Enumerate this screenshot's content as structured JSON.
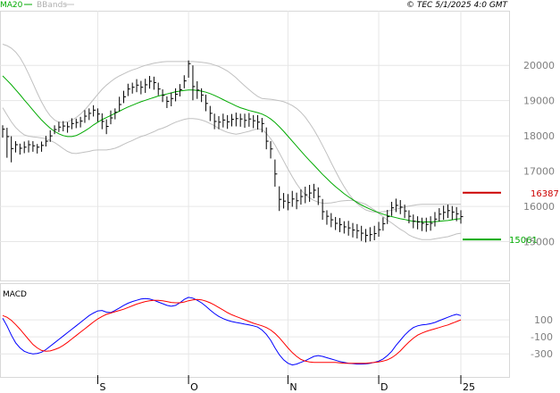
{
  "header": {
    "legend_ma": "MA20",
    "legend_bb": "BBands",
    "copyright": "© TEC 5/1/2025 4:0 GMT"
  },
  "macd_panel": {
    "title": "MACD"
  },
  "colors": {
    "background": "#ffffff",
    "plot_bg": "#ffffff",
    "grid": "#e6e6e6",
    "ma": "#00aa00",
    "bbands": "#c0c0c0",
    "price": "#000000",
    "resistance": "#cc0000",
    "support": "#00aa00",
    "macd": "#0000ff",
    "signal": "#ff0000"
  },
  "chart_data": [
    {
      "type": "ohlc",
      "panel": "price",
      "y_ticks": [
        15000,
        16000,
        17000,
        18000,
        19000,
        20000
      ],
      "y_tick_labels": [
        "15000",
        "16000",
        "17000",
        "18000",
        "19000",
        "20000"
      ],
      "ylim": [
        13950,
        21500
      ],
      "x_ticks": [
        {
          "index": 22,
          "label": "S"
        },
        {
          "index": 43,
          "label": "O"
        },
        {
          "index": 66,
          "label": "N"
        },
        {
          "index": 87,
          "label": "D"
        },
        {
          "index": 106,
          "label": "25"
        }
      ],
      "x_count": 107,
      "levels": [
        {
          "name": "resistance",
          "value": 16387,
          "label": "16387"
        },
        {
          "name": "support",
          "value": 15061,
          "label": "15061"
        }
      ],
      "close": [
        18190,
        17980,
        17640,
        17750,
        17650,
        17680,
        17750,
        17720,
        17680,
        17730,
        17850,
        18000,
        18180,
        18250,
        18280,
        18260,
        18350,
        18380,
        18420,
        18560,
        18640,
        18730,
        18620,
        18410,
        18270,
        18510,
        18670,
        18890,
        19110,
        19330,
        19380,
        19440,
        19380,
        19450,
        19550,
        19510,
        19330,
        19150,
        18980,
        19060,
        19180,
        19310,
        19560,
        20050,
        19400,
        19300,
        19160,
        18920,
        18640,
        18410,
        18390,
        18450,
        18400,
        18470,
        18490,
        18480,
        18440,
        18480,
        18430,
        18390,
        18350,
        17850,
        17630,
        16920,
        16200,
        16150,
        16110,
        16210,
        16160,
        16280,
        16330,
        16380,
        16460,
        16280,
        15850,
        15720,
        15620,
        15520,
        15480,
        15420,
        15390,
        15330,
        15310,
        15240,
        15180,
        15200,
        15230,
        15340,
        15510,
        15710,
        15960,
        16030,
        15980,
        15870,
        15720,
        15580,
        15560,
        15520,
        15490,
        15520,
        15640,
        15780,
        15830,
        15880,
        15840,
        15790,
        15710
      ],
      "high": [
        18300,
        18230,
        17990,
        17850,
        17780,
        17840,
        17870,
        17850,
        17770,
        17840,
        18000,
        18160,
        18300,
        18400,
        18420,
        18390,
        18500,
        18490,
        18540,
        18730,
        18780,
        18870,
        18780,
        18640,
        18470,
        18720,
        18780,
        19110,
        19280,
        19480,
        19510,
        19610,
        19560,
        19620,
        19700,
        19680,
        19510,
        19320,
        19120,
        19230,
        19350,
        19470,
        19720,
        20140,
        20000,
        19550,
        19350,
        19170,
        18850,
        18630,
        18560,
        18630,
        18590,
        18620,
        18660,
        18630,
        18630,
        18650,
        18590,
        18590,
        18510,
        18240,
        17850,
        17330,
        16570,
        16380,
        16350,
        16440,
        16390,
        16480,
        16560,
        16610,
        16640,
        16540,
        16210,
        15890,
        15810,
        15700,
        15670,
        15580,
        15590,
        15530,
        15500,
        15450,
        15360,
        15410,
        15450,
        15560,
        15690,
        15900,
        16130,
        16220,
        16180,
        16050,
        15890,
        15770,
        15720,
        15680,
        15680,
        15720,
        15840,
        15950,
        16020,
        16050,
        16010,
        15980,
        15890
      ],
      "low": [
        17950,
        17380,
        17250,
        17530,
        17470,
        17510,
        17530,
        17550,
        17500,
        17550,
        17700,
        17830,
        18050,
        18110,
        18130,
        18090,
        18190,
        18220,
        18240,
        18370,
        18450,
        18550,
        18400,
        18190,
        18050,
        18330,
        18470,
        18690,
        18930,
        19130,
        19200,
        19240,
        19180,
        19220,
        19340,
        19310,
        19150,
        18960,
        18790,
        18840,
        18980,
        19120,
        19350,
        19650,
        19010,
        19050,
        18960,
        18700,
        18420,
        18190,
        18190,
        18240,
        18200,
        18270,
        18270,
        18260,
        18230,
        18260,
        18220,
        18180,
        18100,
        17620,
        17360,
        16560,
        15870,
        15940,
        15890,
        15990,
        15920,
        16050,
        16090,
        16130,
        16230,
        16040,
        15620,
        15480,
        15410,
        15330,
        15270,
        15230,
        15170,
        15120,
        15090,
        15020,
        14980,
        15010,
        15040,
        15140,
        15310,
        15500,
        15730,
        15840,
        15780,
        15670,
        15520,
        15380,
        15350,
        15300,
        15280,
        15310,
        15430,
        15570,
        15620,
        15670,
        15620,
        15580,
        15510
      ],
      "ma20": [
        19700,
        19580,
        19450,
        19310,
        19170,
        19020,
        18880,
        18730,
        18590,
        18450,
        18330,
        18220,
        18130,
        18060,
        18010,
        17980,
        17980,
        18010,
        18070,
        18140,
        18220,
        18310,
        18390,
        18460,
        18520,
        18580,
        18640,
        18700,
        18760,
        18820,
        18870,
        18920,
        18970,
        19010,
        19050,
        19090,
        19130,
        19160,
        19190,
        19220,
        19250,
        19270,
        19290,
        19300,
        19300,
        19290,
        19270,
        19240,
        19200,
        19150,
        19090,
        19030,
        18970,
        18910,
        18850,
        18800,
        18760,
        18720,
        18690,
        18660,
        18620,
        18560,
        18480,
        18380,
        18260,
        18130,
        17990,
        17850,
        17710,
        17570,
        17430,
        17300,
        17170,
        17040,
        16910,
        16790,
        16670,
        16560,
        16460,
        16360,
        16270,
        16190,
        16110,
        16040,
        15980,
        15920,
        15870,
        15820,
        15780,
        15740,
        15710,
        15680,
        15650,
        15630,
        15600,
        15580,
        15570,
        15560,
        15560,
        15560,
        15570,
        15580,
        15590,
        15600,
        15620,
        15640,
        15650
      ],
      "bb_upper": [
        20600,
        20560,
        20490,
        20380,
        20220,
        20010,
        19760,
        19490,
        19220,
        18960,
        18740,
        18570,
        18450,
        18390,
        18380,
        18400,
        18450,
        18520,
        18620,
        18740,
        18880,
        19030,
        19180,
        19320,
        19440,
        19540,
        19630,
        19700,
        19760,
        19820,
        19870,
        19910,
        19960,
        20000,
        20030,
        20060,
        20080,
        20100,
        20110,
        20110,
        20110,
        20110,
        20110,
        20110,
        20110,
        20100,
        20090,
        20070,
        20050,
        20010,
        19970,
        19910,
        19840,
        19750,
        19650,
        19530,
        19420,
        19310,
        19210,
        19120,
        19060,
        19050,
        19040,
        19020,
        19000,
        18970,
        18920,
        18860,
        18780,
        18670,
        18530,
        18360,
        18170,
        17960,
        17730,
        17490,
        17240,
        17000,
        16770,
        16560,
        16370,
        16210,
        16080,
        15980,
        15900,
        15860,
        15840,
        15840,
        15850,
        15870,
        15890,
        15920,
        15950,
        15980,
        16010,
        16030,
        16050,
        16060,
        16060,
        16060,
        16060,
        16060,
        16060,
        16060,
        16060,
        16060,
        16060
      ],
      "bb_lower": [
        18800,
        18600,
        18400,
        18240,
        18120,
        18030,
        17990,
        17970,
        17960,
        17940,
        17920,
        17870,
        17810,
        17730,
        17640,
        17560,
        17510,
        17500,
        17520,
        17540,
        17560,
        17590,
        17600,
        17600,
        17600,
        17620,
        17650,
        17700,
        17760,
        17820,
        17870,
        17930,
        17980,
        18020,
        18070,
        18120,
        18180,
        18220,
        18270,
        18330,
        18390,
        18430,
        18470,
        18490,
        18490,
        18480,
        18450,
        18410,
        18350,
        18290,
        18210,
        18150,
        18100,
        18070,
        18050,
        18070,
        18100,
        18130,
        18170,
        18200,
        18180,
        18070,
        17920,
        17740,
        17520,
        17290,
        17060,
        16840,
        16640,
        16470,
        16330,
        16240,
        16170,
        16120,
        16090,
        16090,
        16100,
        16120,
        16150,
        16160,
        16170,
        16170,
        16140,
        16100,
        16060,
        15980,
        15900,
        15800,
        15710,
        15610,
        15530,
        15440,
        15350,
        15280,
        15190,
        15130,
        15090,
        15060,
        15060,
        15060,
        15080,
        15100,
        15120,
        15140,
        15180,
        15220,
        15240
      ]
    },
    {
      "type": "line",
      "panel": "macd",
      "title": "MACD",
      "y_ticks": [
        100,
        -100,
        -300
      ],
      "y_tick_labels": [
        "100",
        "-100",
        "-300"
      ],
      "ylim": [
        -550,
        500
      ],
      "series": [
        {
          "name": "MACD",
          "values": [
            120,
            30,
            -80,
            -170,
            -230,
            -270,
            -290,
            -300,
            -295,
            -280,
            -250,
            -210,
            -170,
            -130,
            -90,
            -50,
            -10,
            30,
            70,
            110,
            150,
            180,
            205,
            210,
            190,
            185,
            210,
            240,
            270,
            295,
            315,
            330,
            345,
            350,
            345,
            330,
            310,
            290,
            270,
            260,
            270,
            300,
            340,
            365,
            355,
            330,
            300,
            260,
            215,
            175,
            140,
            115,
            95,
            80,
            70,
            60,
            50,
            40,
            30,
            15,
            -20,
            -70,
            -140,
            -230,
            -310,
            -370,
            -410,
            -430,
            -420,
            -400,
            -380,
            -355,
            -330,
            -320,
            -330,
            -345,
            -360,
            -375,
            -390,
            -400,
            -410,
            -415,
            -420,
            -420,
            -418,
            -410,
            -400,
            -385,
            -360,
            -320,
            -270,
            -200,
            -140,
            -80,
            -30,
            10,
            30,
            40,
            45,
            55,
            70,
            90,
            110,
            130,
            150,
            165,
            150
          ]
        },
        {
          "name": "Signal",
          "values": [
            150,
            130,
            95,
            45,
            -10,
            -70,
            -130,
            -190,
            -230,
            -260,
            -270,
            -265,
            -250,
            -230,
            -200,
            -165,
            -125,
            -85,
            -45,
            -5,
            35,
            75,
            110,
            140,
            165,
            180,
            195,
            210,
            225,
            245,
            265,
            285,
            300,
            315,
            325,
            330,
            330,
            325,
            315,
            305,
            300,
            300,
            310,
            325,
            335,
            340,
            335,
            320,
            300,
            275,
            245,
            215,
            185,
            160,
            140,
            120,
            100,
            80,
            60,
            45,
            30,
            10,
            -20,
            -60,
            -110,
            -170,
            -230,
            -285,
            -330,
            -365,
            -385,
            -395,
            -400,
            -400,
            -400,
            -400,
            -400,
            -400,
            -405,
            -410,
            -410,
            -410,
            -410,
            -410,
            -410,
            -405,
            -400,
            -395,
            -385,
            -370,
            -345,
            -310,
            -265,
            -210,
            -160,
            -115,
            -80,
            -55,
            -35,
            -20,
            -5,
            10,
            25,
            40,
            60,
            80,
            100
          ]
        }
      ]
    }
  ]
}
